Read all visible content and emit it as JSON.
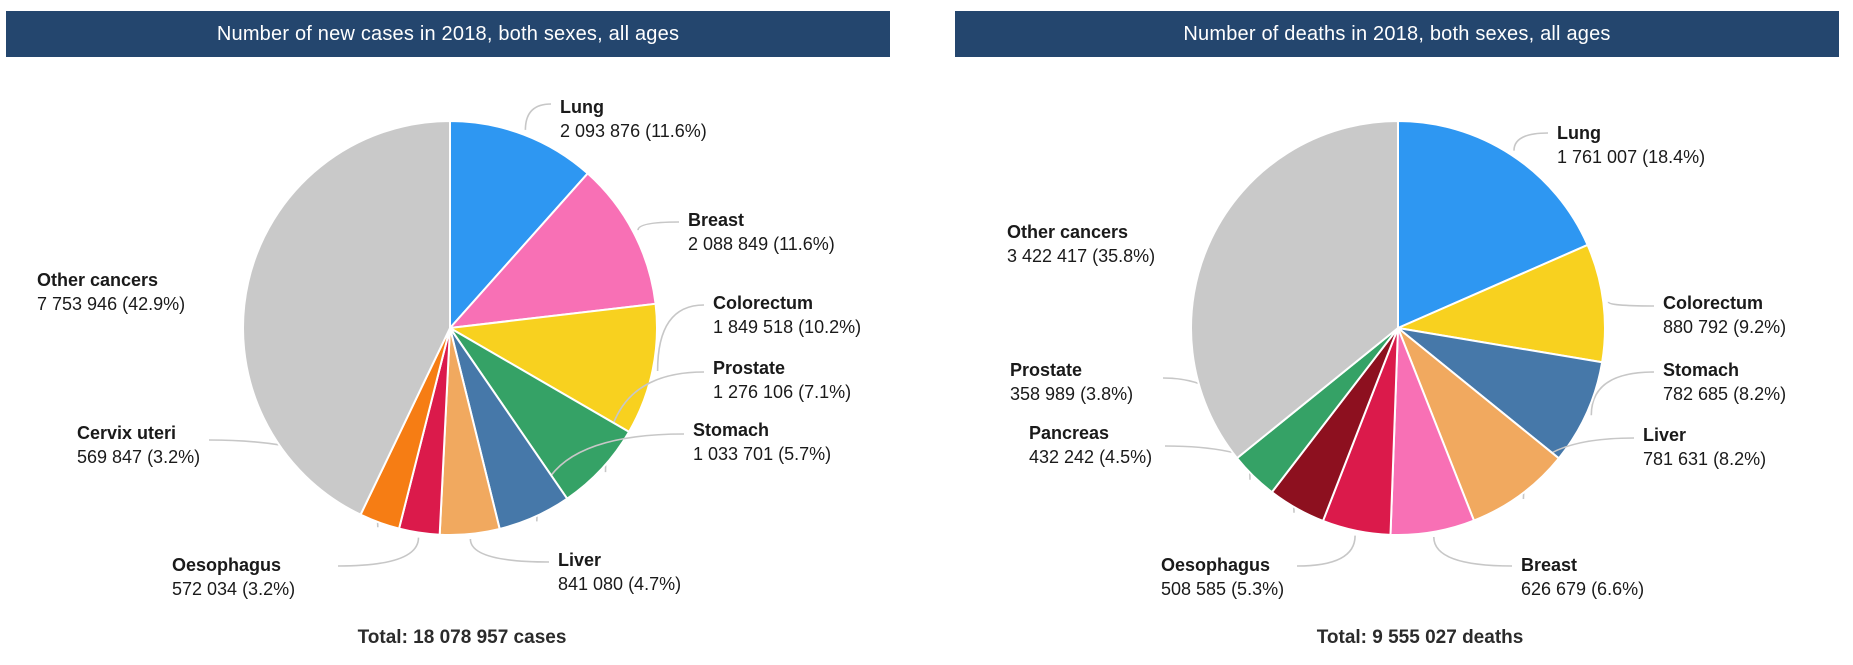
{
  "chart_data": [
    {
      "type": "pie",
      "title": "Number of new cases in 2018, both sexes, all ages",
      "total": "Total: 18 078 957 cases",
      "legend_position": "around-pie-callouts",
      "slices": [
        {
          "label": "Lung",
          "value": 2093876,
          "percent": 11.6,
          "display": "2 093 876 (11.6%)",
          "color": "#2E97F2"
        },
        {
          "label": "Breast",
          "value": 2088849,
          "percent": 11.6,
          "display": "2 088 849 (11.6%)",
          "color": "#F870B5"
        },
        {
          "label": "Colorectum",
          "value": 1849518,
          "percent": 10.2,
          "display": "1 849 518 (10.2%)",
          "color": "#F8D11F"
        },
        {
          "label": "Prostate",
          "value": 1276106,
          "percent": 7.1,
          "display": "1 276 106 (7.1%)",
          "color": "#35A266"
        },
        {
          "label": "Stomach",
          "value": 1033701,
          "percent": 5.7,
          "display": "1 033 701 (5.7%)",
          "color": "#4678A9"
        },
        {
          "label": "Liver",
          "value": 841080,
          "percent": 4.7,
          "display": "841 080 (4.7%)",
          "color": "#F1A95F"
        },
        {
          "label": "Oesophagus",
          "value": 572034,
          "percent": 3.2,
          "display": "572 034 (3.2%)",
          "color": "#DB1A4B"
        },
        {
          "label": "Cervix uteri",
          "value": 569847,
          "percent": 3.2,
          "display": "569 847 (3.2%)",
          "color": "#F67D14"
        },
        {
          "label": "Other cancers",
          "value": 7753946,
          "percent": 42.9,
          "display": "7 753 946 (42.9%)",
          "color": "#C9C9C9"
        }
      ]
    },
    {
      "type": "pie",
      "title": "Number of deaths in 2018, both sexes, all ages",
      "total": "Total: 9 555 027 deaths",
      "legend_position": "around-pie-callouts",
      "slices": [
        {
          "label": "Lung",
          "value": 1761007,
          "percent": 18.4,
          "display": "1 761 007 (18.4%)",
          "color": "#2E97F2"
        },
        {
          "label": "Colorectum",
          "value": 880792,
          "percent": 9.2,
          "display": "880 792 (9.2%)",
          "color": "#F8D11F"
        },
        {
          "label": "Stomach",
          "value": 782685,
          "percent": 8.2,
          "display": "782 685 (8.2%)",
          "color": "#4678A9"
        },
        {
          "label": "Liver",
          "value": 781631,
          "percent": 8.2,
          "display": "781 631 (8.2%)",
          "color": "#F1A95F"
        },
        {
          "label": "Breast",
          "value": 626679,
          "percent": 6.6,
          "display": "626 679 (6.6%)",
          "color": "#F870B5"
        },
        {
          "label": "Oesophagus",
          "value": 508585,
          "percent": 5.3,
          "display": "508 585 (5.3%)",
          "color": "#DB1A4B"
        },
        {
          "label": "Pancreas",
          "value": 432242,
          "percent": 4.5,
          "display": "432 242 (4.5%)",
          "color": "#8D101F"
        },
        {
          "label": "Prostate",
          "value": 358989,
          "percent": 3.8,
          "display": "358 989 (3.8%)",
          "color": "#35A266"
        },
        {
          "label": "Other cancers",
          "value": 3422417,
          "percent": 35.8,
          "display": "3 422 417 (35.8%)",
          "color": "#C9C9C9"
        }
      ]
    }
  ],
  "colors": {
    "header_background": "#24466E",
    "header_text": "#FFFFFF",
    "label_text": "#1A1A1A",
    "leader_line": "#C7C7C7",
    "slice_stroke": "#FFFFFF"
  }
}
